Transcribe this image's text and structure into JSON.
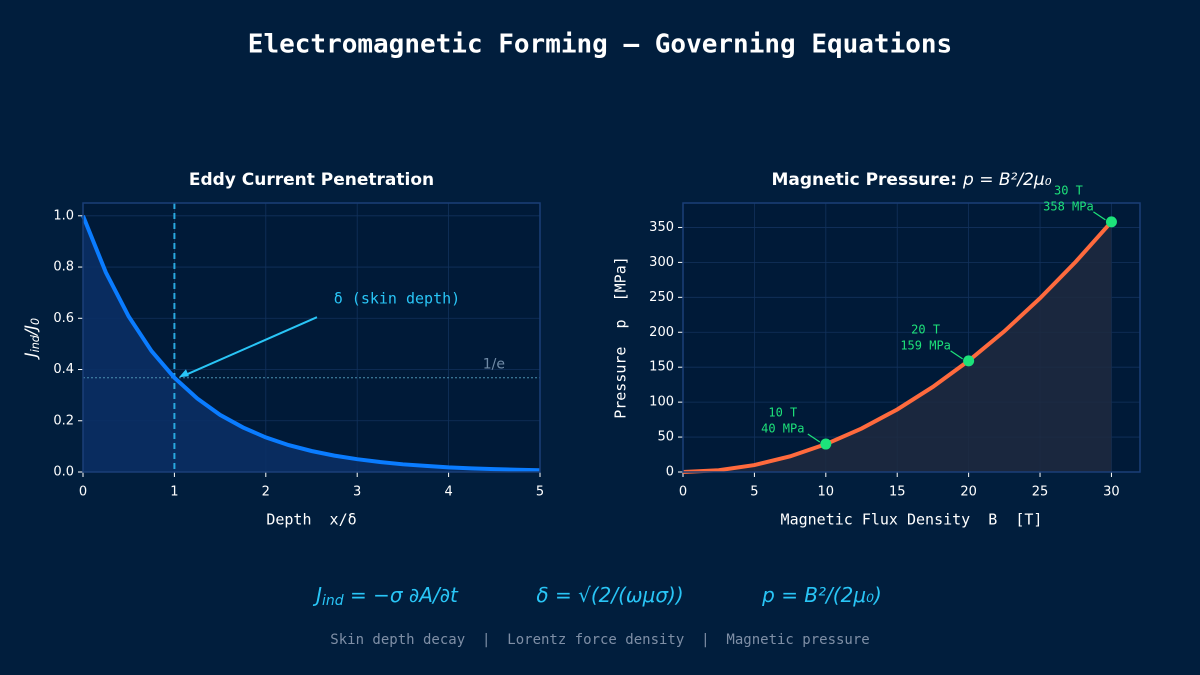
{
  "title": "Electromagnetic Forming — Governing Equations",
  "chart_data": [
    {
      "type": "line",
      "title": "Eddy Current Penetration",
      "xlabel": "Depth  x/δ",
      "ylabel": [
        "J",
        "ind",
        "/J",
        "0"
      ],
      "x": [
        0,
        0.25,
        0.5,
        0.75,
        1,
        1.25,
        1.5,
        1.75,
        2,
        2.25,
        2.5,
        2.75,
        3,
        3.25,
        3.5,
        3.75,
        4,
        4.25,
        4.5,
        4.75,
        5
      ],
      "values": [
        1,
        0.779,
        0.607,
        0.472,
        0.368,
        0.287,
        0.223,
        0.174,
        0.135,
        0.105,
        0.082,
        0.064,
        0.05,
        0.039,
        0.03,
        0.024,
        0.018,
        0.014,
        0.011,
        0.009,
        0.007
      ],
      "color": "#0a7cff",
      "fill_color": "#0b3066",
      "xlim": [
        0,
        5
      ],
      "ylim": [
        0,
        1.05
      ],
      "xticks": [
        0,
        1,
        2,
        3,
        4,
        5
      ],
      "yticks": [
        {
          "value": 0,
          "label": "0.0"
        },
        {
          "value": 0.2,
          "label": "0.2"
        },
        {
          "value": 0.4,
          "label": "0.4"
        },
        {
          "value": 0.6,
          "label": "0.6"
        },
        {
          "value": 0.8,
          "label": "0.8"
        },
        {
          "value": 1,
          "label": "1.0"
        }
      ],
      "grid": true,
      "vline": 1,
      "hline": 0.368,
      "hline_label": "1/e",
      "arrow_annotation": {
        "text": "δ (skin depth)",
        "x": 1.05,
        "y": 0.37
      }
    },
    {
      "type": "line",
      "title": "Magnetic Pressure:",
      "title_math": "p = B²/2μ₀",
      "xlabel": "Magnetic Flux Density  B  [T]",
      "ylabel": "Pressure  p  [MPa]",
      "x": [
        0,
        2.5,
        5,
        7.5,
        10,
        12.5,
        15,
        17.5,
        20,
        22.5,
        25,
        27.5,
        30
      ],
      "values": [
        0,
        2.49,
        9.95,
        22.4,
        39.8,
        62.2,
        89.5,
        121.9,
        159.2,
        201.4,
        248.7,
        300.9,
        358.1
      ],
      "color": "#ff6a3d",
      "fill_color": "#1f2a40",
      "xlim": [
        0,
        32
      ],
      "ylim": [
        0,
        385
      ],
      "xticks": [
        0,
        5,
        10,
        15,
        20,
        25,
        30
      ],
      "yticks": [
        0,
        50,
        100,
        150,
        200,
        250,
        300,
        350
      ],
      "grid": true,
      "points": {
        "x": [
          10,
          20,
          30
        ],
        "values": [
          40,
          159,
          358
        ],
        "labels": [
          [
            "10 T",
            "40 MPa"
          ],
          [
            "20 T",
            "159 MPa"
          ],
          [
            "30 T",
            "358 MPa"
          ]
        ],
        "color": "#1de27a"
      }
    }
  ],
  "formulas": [
    [
      "J",
      "ind",
      " = −σ ∂A/∂t"
    ],
    [
      "δ = √(2/(ωμσ))"
    ],
    [
      "p = B²/(2μ₀)"
    ]
  ],
  "footer": "Skin depth decay  |  Lorentz force density  |  Magnetic pressure"
}
